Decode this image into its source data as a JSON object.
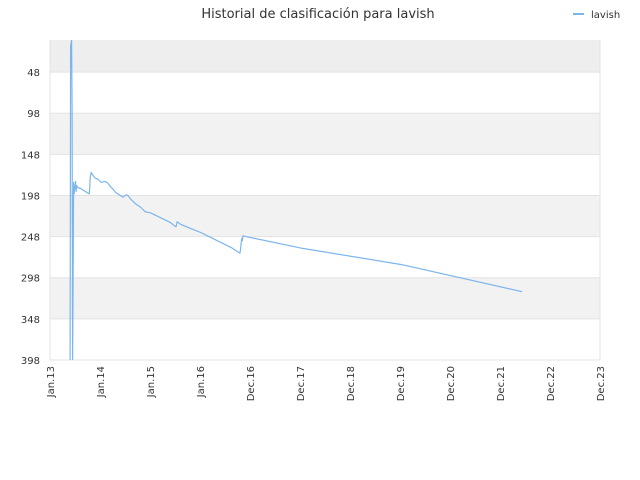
{
  "chart_data": {
    "type": "line",
    "title": "Historial de clasificación para lavish",
    "xlabel": "",
    "ylabel": "",
    "legend": {
      "position": "top-right",
      "entries": [
        "lavish"
      ]
    },
    "y_inverted": true,
    "ylim": [
      398,
      9
    ],
    "yticks": [
      48,
      98,
      148,
      198,
      248,
      298,
      348,
      398
    ],
    "x_tick_labels": [
      "Jan.13",
      "Jan.14",
      "Jan.15",
      "Jan.16",
      "Dec.16",
      "Dec.17",
      "Dec.18",
      "Dec.19",
      "Dec.20",
      "Dec.21",
      "Dec.22",
      "Dec.23"
    ],
    "grid": true,
    "series": [
      {
        "name": "lavish",
        "color": "#7cb5ec",
        "x": [
          2013.4,
          2013.41,
          2013.43,
          2013.44,
          2013.45,
          2013.46,
          2013.47,
          2013.48,
          2013.5,
          2013.51,
          2013.52,
          2013.53,
          2013.55,
          2013.57,
          2013.6,
          2013.65,
          2013.7,
          2013.75,
          2013.78,
          2013.79,
          2013.8,
          2013.82,
          2013.85,
          2013.9,
          2013.95,
          2014.02,
          2014.1,
          2014.15,
          2014.2,
          2014.25,
          2014.3,
          2014.45,
          2014.52,
          2014.55,
          2014.6,
          2014.7,
          2014.8,
          2014.9,
          2015.0,
          2015.2,
          2015.4,
          2015.5,
          2015.51,
          2015.53,
          2015.6,
          2015.8,
          2016.0,
          2016.2,
          2016.4,
          2016.6,
          2016.78,
          2016.79,
          2016.81,
          2016.82,
          2016.83,
          2016.84,
          2016.9,
          2018.0,
          2020.0,
          2022.4
        ],
        "values": [
          398,
          16,
          9,
          98,
          400,
          300,
          182,
          196,
          186,
          181,
          193,
          186,
          188,
          189,
          189,
          191,
          193,
          195,
          196,
          190,
          176,
          170,
          173,
          177,
          178,
          182,
          181,
          183,
          187,
          190,
          194,
          200,
          197,
          198,
          202,
          208,
          212,
          218,
          219,
          225,
          231,
          236,
          236,
          230,
          233,
          238,
          243,
          249,
          255,
          261,
          268,
          265,
          253,
          250,
          253,
          247,
          248,
          262,
          282,
          315
        ]
      }
    ]
  }
}
